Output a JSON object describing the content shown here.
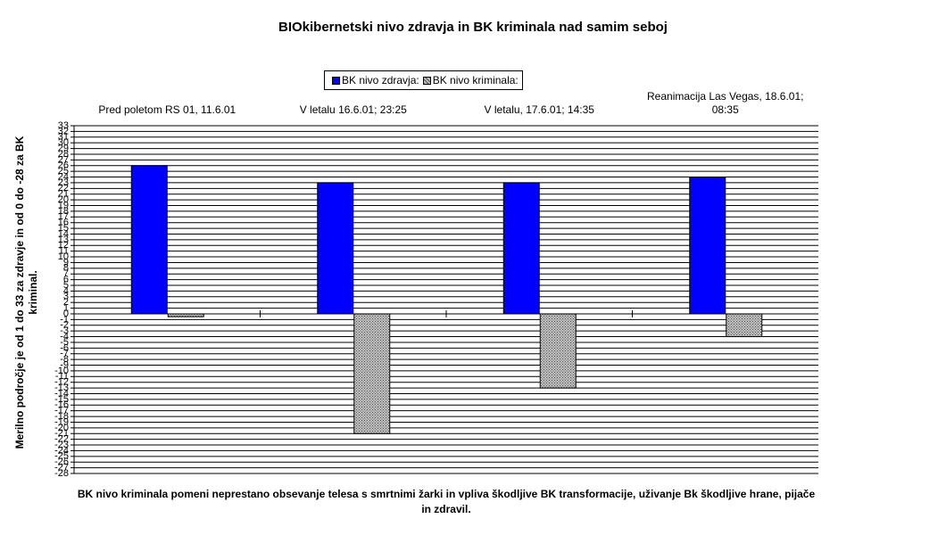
{
  "chart_data": {
    "type": "bar",
    "title": "BIOkibernetski nivo zdravja in BK kriminala nad samim seboj",
    "y_label": "Merilno področje je od 1 do 33 za zdravje in od 0 do -28 za BK kriminal.",
    "footnote": "BK nivo kriminala pomeni neprestano obsevanje telesa s smrtnimi žarki in vpliva škodljive BK transformacije, uživanje Bk škodljive hrane, pijače in zdravil.",
    "categories": [
      "Pred poletom RS 01, 11.6.01",
      "V letalu 16.6.01; 23:25",
      "V letalu, 17.6.01; 14:35",
      "Reanimacija Las Vegas, 18.6.01; 08:35"
    ],
    "series": [
      {
        "name": "BK nivo zdravja:",
        "color": "#0000ff",
        "pattern": "solid",
        "values": [
          26,
          23,
          23,
          24
        ]
      },
      {
        "name": "BK nivo kriminala:",
        "color": "#c0c0c0",
        "pattern": "hatch",
        "values": [
          -0.5,
          -21,
          -13,
          -4
        ]
      }
    ],
    "ylim": [
      -28,
      33
    ],
    "yticks": [
      -28,
      -27,
      -26,
      -25,
      -24,
      -23,
      -22,
      -21,
      -20,
      -19,
      -18,
      -17,
      -16,
      -15,
      -14,
      -13,
      -12,
      -11,
      -10,
      -9,
      -8,
      -7,
      -6,
      -5,
      -4,
      -3,
      -2,
      -1,
      0,
      1,
      2,
      3,
      4,
      5,
      6,
      7,
      8,
      9,
      10,
      11,
      12,
      13,
      14,
      15,
      16,
      17,
      18,
      19,
      20,
      21,
      22,
      23,
      24,
      25,
      26,
      27,
      28,
      29,
      30,
      31,
      32,
      33
    ],
    "grid": true,
    "legend_position": "top"
  }
}
